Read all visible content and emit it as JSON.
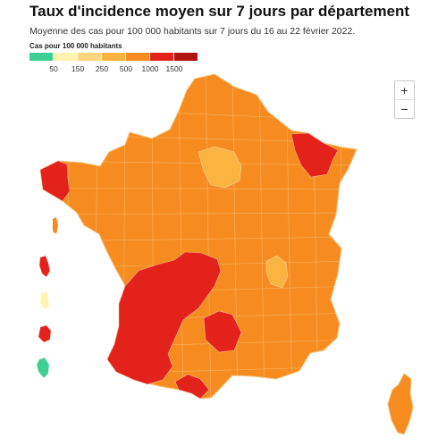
{
  "header": {
    "title": "Taux d'incidence moyen sur 7 jours par département",
    "subtitle": "Moyenne des cas pour 100 000 habitants sur 7 jours du 16 au 22 février 2022."
  },
  "legend": {
    "title": "Cas pour 100 000 habitants",
    "colors": [
      "#3ecf95",
      "#fff5b0",
      "#ffd580",
      "#fbb43f",
      "#f68c1f",
      "#e3231b",
      "#b2150f"
    ],
    "ticks": [
      "50",
      "150",
      "250",
      "500",
      "1000",
      "1500"
    ]
  },
  "zoom": {
    "in_label": "+",
    "out_label": "−"
  },
  "colors": {
    "orange": "#f68c1f",
    "red": "#e3231b",
    "light_orange": "#fbb43f",
    "pale_yellow": "#fff5b0",
    "green": "#3ecf95",
    "border": "#f7c07a"
  }
}
